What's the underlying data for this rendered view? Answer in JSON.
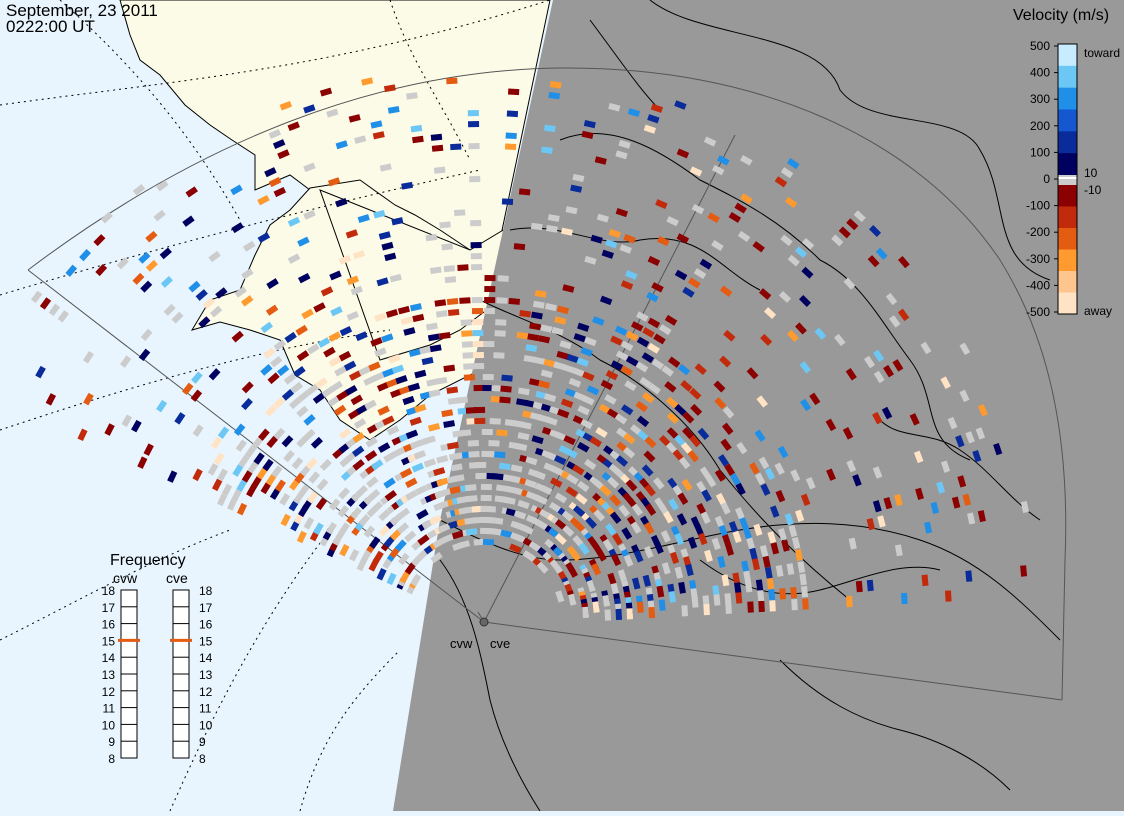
{
  "header": {
    "date": "September, 23 2011",
    "time": "0222:00 UT"
  },
  "colorbar": {
    "title": "Velocity (m/s)",
    "ticks": [
      "500",
      "400",
      "300",
      "200",
      "100",
      "0",
      "-100",
      "-200",
      "-300",
      "-400",
      "-500"
    ],
    "side_labels": {
      "toward": "toward",
      "ten": "10",
      "minus_ten": "-10",
      "away": "away"
    },
    "colors": [
      "#ffe3c4",
      "#ffc58f",
      "#ff9a2e",
      "#e45b12",
      "#c22a0c",
      "#8b0000",
      "#cccccc",
      "#000060",
      "#0a2c9a",
      "#1457d0",
      "#1f8fe8",
      "#6cc7f5",
      "#c7ebff"
    ]
  },
  "frequency_panel": {
    "title": "Frequency",
    "radars": [
      "cvw",
      "cve"
    ],
    "scale": [
      "18",
      "17",
      "16",
      "15",
      "14",
      "13",
      "12",
      "11",
      "10",
      "9",
      "8"
    ],
    "current": {
      "cvw": 15,
      "cve": 15
    }
  },
  "radar_sites": [
    "cvw",
    "cve"
  ],
  "map_colors": {
    "ocean": "#e8f5fe",
    "land": "#fbfbe8",
    "night": "#999999",
    "ground_scatter": "#cccccc"
  }
}
